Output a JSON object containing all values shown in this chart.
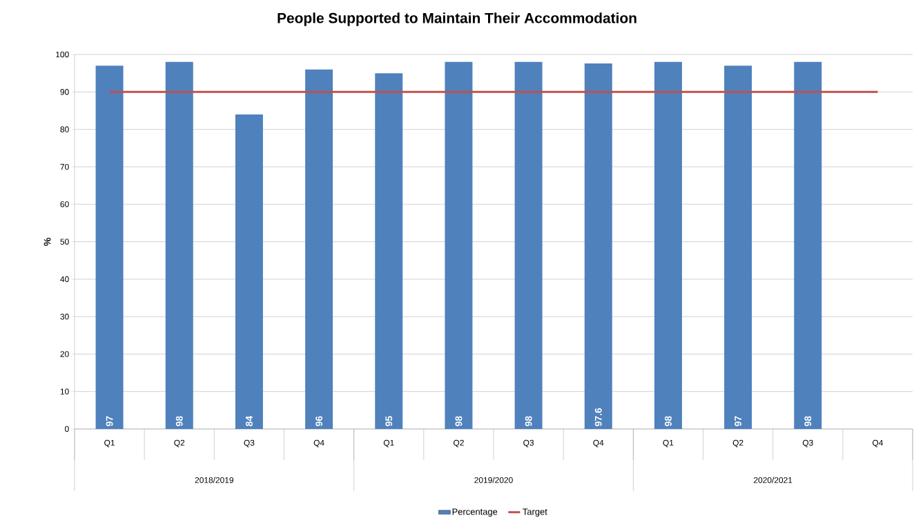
{
  "chart_data": {
    "type": "bar",
    "title": "People Supported to Maintain Their Accommodation",
    "ylabel": "%",
    "categories": [
      "Q1",
      "Q2",
      "Q3",
      "Q4",
      "Q1",
      "Q2",
      "Q3",
      "Q4",
      "Q1",
      "Q2",
      "Q3",
      "Q4"
    ],
    "series": [
      {
        "name": "Percentage",
        "color": "#4f81bd",
        "values": [
          97,
          98,
          84,
          96,
          95,
          98,
          98,
          97.6,
          98,
          97,
          98,
          null
        ],
        "value_labels": [
          "97",
          "98",
          "84",
          "96",
          "95",
          "98",
          "98",
          "97.6",
          "98",
          "97",
          "98",
          null
        ]
      },
      {
        "name": "Target",
        "type": "line",
        "color": "#c0504d",
        "values": [
          90,
          90,
          90,
          90,
          90,
          90,
          90,
          90,
          90,
          90,
          90,
          90
        ]
      }
    ],
    "annotations": [
      "2018/2019",
      "2019/2020",
      "2020/2021"
    ],
    "ylim": [
      0,
      100
    ],
    "yticks": [
      0,
      10,
      20,
      30,
      40,
      50,
      60,
      70,
      80,
      90,
      100
    ],
    "grid": "y",
    "legend": "bottom",
    "marker": "none",
    "line_style": "solid"
  }
}
